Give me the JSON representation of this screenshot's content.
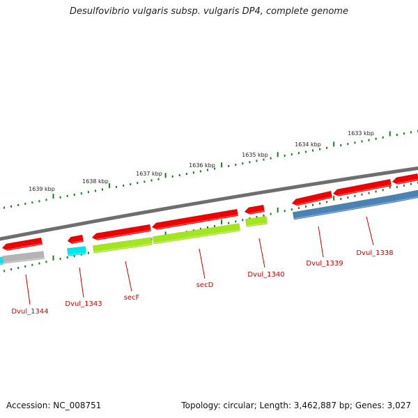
{
  "title": "Desulfovibrio vulgaris subsp. vulgaris DP4, complete genome",
  "footer": {
    "accession": "Accession: NC_008751",
    "summary": "Topology: circular; Length: 3,462,887 bp; Genes: 3,027"
  },
  "scale_labels": [
    "1639 kbp",
    "1638 kbp",
    "1637 kbp",
    "1636 kbp",
    "1635 kbp",
    "1634 kbp",
    "1633 kbp"
  ],
  "gene_labels": [
    "Dvul_1344",
    "Dvul_1343",
    "secF",
    "secD",
    "Dvul_1340",
    "Dvul_1339",
    "Dvul_1338"
  ],
  "colors": {
    "cds_forward": "#ee0000",
    "backbone": "#808080",
    "tick": "#1a7a1a",
    "label": "#cc0000",
    "cyan_feature": "#00e5ee",
    "green_feature": "#a4e61c",
    "blue_feature": "#4a82b4",
    "gray_feature": "#b4b4b4"
  }
}
